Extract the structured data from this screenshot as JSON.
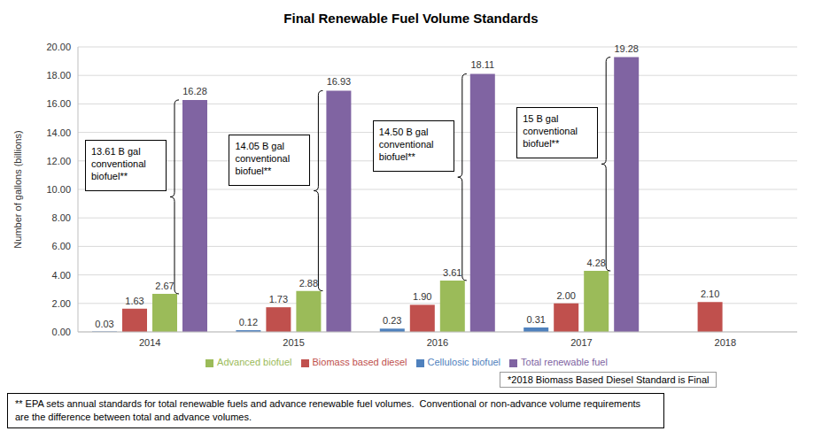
{
  "chart_data": {
    "type": "bar",
    "title": "Final Renewable Fuel Volume Standards",
    "y_label": "Number of gallons (billions)",
    "categories": [
      "2014",
      "2015",
      "2016",
      "2017",
      "2018"
    ],
    "series": [
      {
        "name": "Cellulosic biofuel",
        "color": "#4f81bd",
        "values": [
          0.03,
          0.12,
          0.23,
          0.31,
          null
        ],
        "value_labels": [
          "0.03",
          "0.12",
          "0.23",
          "0.31",
          null
        ]
      },
      {
        "name": "Biomass based diesel",
        "color": "#c0504d",
        "values": [
          1.63,
          1.73,
          1.9,
          2.0,
          2.1
        ],
        "value_labels": [
          "1.63",
          "1.73",
          "1.90",
          "2.00",
          "2.10"
        ]
      },
      {
        "name": "Advanced biofuel",
        "color": "#9bbb59",
        "values": [
          2.67,
          2.88,
          3.61,
          4.28,
          null
        ],
        "value_labels": [
          "2.67",
          "2.88",
          "3.61",
          "4.28",
          null
        ]
      },
      {
        "name": "Total renewable fuel",
        "color": "#8064a2",
        "values": [
          16.28,
          16.93,
          18.11,
          19.28,
          null
        ],
        "value_labels": [
          "16.28",
          "16.93",
          "18.11",
          "19.28",
          null
        ]
      }
    ],
    "ylim": [
      0,
      20
    ],
    "yticks": [
      {
        "value": 0,
        "label": "0.00"
      },
      {
        "value": 2,
        "label": "2.00"
      },
      {
        "value": 4,
        "label": "4.00"
      },
      {
        "value": 6,
        "label": "6.00"
      },
      {
        "value": 8,
        "label": "8.00"
      },
      {
        "value": 10,
        "label": "10.00"
      },
      {
        "value": 12,
        "label": "12.00"
      },
      {
        "value": 14,
        "label": "14.00"
      },
      {
        "value": 16,
        "label": "16.00"
      },
      {
        "value": 18,
        "label": "18.00"
      },
      {
        "value": 20,
        "label": "20.00"
      }
    ],
    "grid": true,
    "legend": "bottom",
    "data_labels": true,
    "annotations": [
      {
        "category": "2014",
        "text": "13.61 B gal conventional biofuel**"
      },
      {
        "category": "2015",
        "text": "14.05 B gal conventional biofuel**"
      },
      {
        "category": "2016",
        "text": "14.50 B gal conventional biofuel**"
      },
      {
        "category": "2017",
        "text": "15 B gal conventional biofuel**"
      }
    ],
    "notes": [
      "*2018 Biomass Based Diesel Standard is Final",
      "** EPA sets annual standards for total renewable fuels and advance renewable fuel volumes.  Conventional or non-advance volume requirements are the difference between total and advance volumes."
    ]
  }
}
